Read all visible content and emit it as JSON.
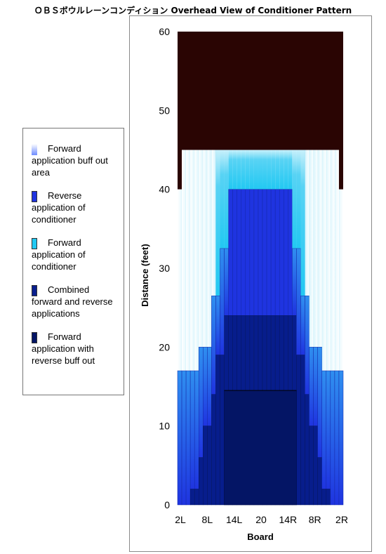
{
  "title": "ＯＢＳボウルレーンコンディション Overhead View of Conditioner Pattern",
  "chart_data": {
    "type": "heatmap",
    "xlabel": "Board",
    "ylabel": "Distance (feet)",
    "x_tick_labels": [
      "2L",
      "8L",
      "14L",
      "20",
      "14R",
      "8R",
      "2R"
    ],
    "y_ticks": [
      0,
      10,
      20,
      30,
      40,
      50,
      60
    ],
    "ylim": [
      0,
      60
    ],
    "boards": 39,
    "colors": {
      "beyond_pattern": "#2a0503",
      "lane_edge_beyond": "#ffffff",
      "buff_out_top": "#ffffff",
      "forward_application": "#22c8f2",
      "reverse_application": "#1f34e0",
      "combined": "#071d8c",
      "forward_with_reverse_buff": "#041565"
    },
    "pattern_length_ft": 45,
    "lane_length_ft": 60,
    "edge_dark_start_ft": 40,
    "edge_boards_each_side": 1,
    "reverse_application_length_by_board": [
      17,
      17,
      17,
      17,
      17,
      20,
      20,
      20,
      26.5,
      26.5,
      32.5,
      32.5,
      40,
      40,
      40,
      40,
      40,
      40,
      40,
      40,
      40,
      40,
      40,
      40,
      40,
      40,
      40,
      32.5,
      32.5,
      26.5,
      26.5,
      20,
      20,
      20,
      17,
      17,
      17,
      17,
      17
    ],
    "combined_length_by_board": [
      0,
      0,
      0,
      2,
      2,
      6,
      10,
      10,
      14,
      19,
      19,
      24,
      24,
      24,
      24,
      24,
      24,
      24,
      24,
      24,
      24,
      24,
      24,
      24,
      24,
      24,
      24,
      24,
      19,
      19,
      14,
      10,
      10,
      6,
      2,
      2,
      0,
      0,
      0
    ],
    "forward_with_reverse_buff_length": 14.5,
    "forward_with_reverse_buff_boards": [
      11,
      27
    ],
    "legend": [
      {
        "label": "Forward application buff out area",
        "color": "#7fa6ff"
      },
      {
        "label": "Reverse application of conditioner",
        "color": "#1f34e0"
      },
      {
        "label": "Forward application of conditioner",
        "color": "#22c8f2"
      },
      {
        "label": "Combined forward and reverse applications",
        "color": "#0a1f8e"
      },
      {
        "label": "Forward application with reverse buff out",
        "color": "#041565"
      }
    ]
  }
}
